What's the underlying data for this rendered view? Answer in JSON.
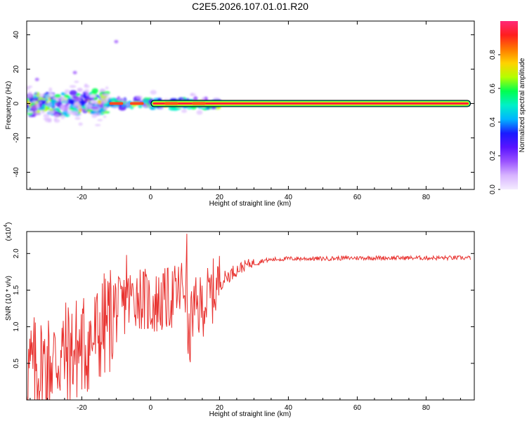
{
  "title": "C2E5.2026.107.01.01.R20",
  "chart_data": [
    {
      "type": "heatmap",
      "name": "spectrogram",
      "xlabel": "Height of straight line (km)",
      "ylabel": "Frequency (Hz)",
      "xlim": [
        -36,
        94
      ],
      "ylim": [
        -50,
        48
      ],
      "xticks": [
        -20,
        0,
        20,
        40,
        60,
        80
      ],
      "yticks": [
        -40,
        -20,
        0,
        20,
        40
      ],
      "colorbar": {
        "label": "Normalized spectral amplitude",
        "range": [
          0,
          1
        ],
        "ticks": [
          0.0,
          0.2,
          0.4,
          0.6,
          0.8
        ],
        "colormap": [
          "#f4ecff",
          "#d8b4ff",
          "#9a52ff",
          "#5a14ff",
          "#1a1aff",
          "#00b4ff",
          "#00f0c8",
          "#00ff50",
          "#b4ff00",
          "#ffd200",
          "#ff7800",
          "#ff1e1e",
          "#ff2878"
        ]
      },
      "ridge": {
        "frequency_hz": 0,
        "start_km": -36,
        "end_km": 93,
        "strong_from_km": 0
      },
      "noise_regions": [
        {
          "x_range": [
            -36,
            -12
          ],
          "freq_spread_hz": 8,
          "intensity": "broad, mixed"
        },
        {
          "x_range": [
            -12,
            20
          ],
          "freq_spread_hz": 3,
          "intensity": "narrow, medium"
        }
      ],
      "outliers": [
        {
          "x": -10,
          "y": 36
        },
        {
          "x": -22,
          "y": 18
        },
        {
          "x": -33,
          "y": 14
        }
      ]
    },
    {
      "type": "line",
      "name": "snr",
      "xlabel": "Height of straight line (km)",
      "ylabel": "SNR (10 * v/v)",
      "exponent_label": "(x10",
      "exponent": "4",
      "exponent_close": ")",
      "xlim": [
        -36,
        94
      ],
      "ylim": [
        0,
        2.3
      ],
      "xticks": [
        -20,
        0,
        20,
        40,
        60,
        80
      ],
      "yticks": [
        "0.5",
        "1.0",
        "1.5",
        "2.0"
      ],
      "color": "#e8322f",
      "series": [
        {
          "name": "SNR",
          "x": [
            -36,
            -32,
            -28,
            -24,
            -20,
            -16,
            -12,
            -8,
            -4,
            0,
            4,
            8,
            10,
            11,
            12,
            14,
            16,
            20,
            24,
            28,
            32,
            36,
            40,
            50,
            60,
            70,
            80,
            93
          ],
          "y": [
            0.4,
            0.45,
            0.55,
            0.65,
            0.72,
            0.85,
            1.1,
            1.3,
            1.45,
            1.3,
            1.35,
            1.45,
            1.6,
            0.65,
            1.2,
            1.25,
            1.35,
            1.6,
            1.75,
            1.85,
            1.9,
            1.92,
            1.93,
            1.93,
            1.94,
            1.94,
            1.94,
            1.94
          ]
        }
      ],
      "notable_spikes": [
        {
          "x": 10.5,
          "y": 2.27
        },
        {
          "x": -7,
          "y": 1.98
        },
        {
          "x": 10.9,
          "y": 0.63
        }
      ]
    }
  ]
}
